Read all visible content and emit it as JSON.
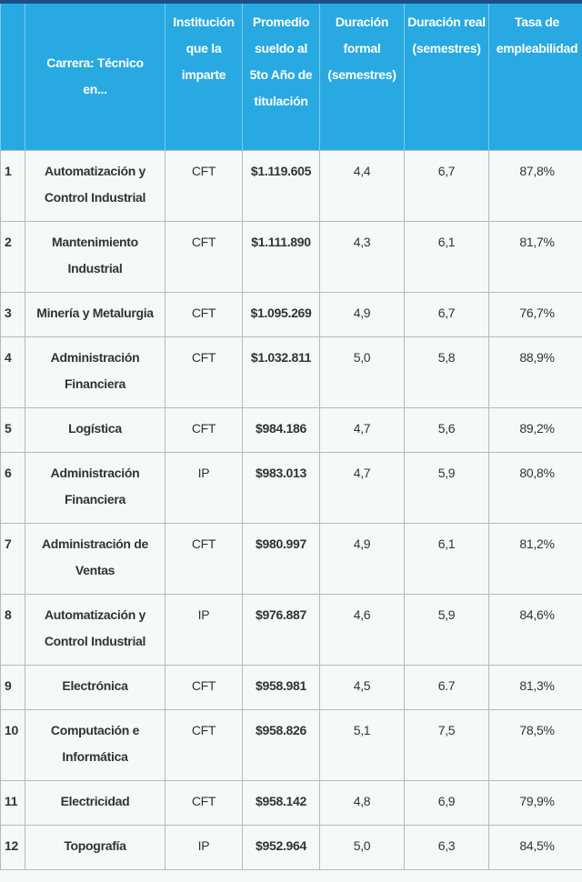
{
  "headers": [
    "",
    "Carrera: Técnico en...",
    "Institución que la imparte",
    "Promedio sueldo al 5to Año de titulación",
    "Duración formal (semestres)",
    "Duración real (semestres)",
    "Tasa de empleabilidad"
  ],
  "rows": [
    {
      "n": "1",
      "carrera": "Automatización y Control Industrial",
      "inst": "CFT",
      "sueldo": "$1.119.605",
      "formal": "4,4",
      "real": "6,7",
      "tasa": "87,8%"
    },
    {
      "n": "2",
      "carrera": "Mantenimiento Industrial",
      "inst": "CFT",
      "sueldo": "$1.111.890",
      "formal": "4,3",
      "real": "6,1",
      "tasa": "81,7%"
    },
    {
      "n": "3",
      "carrera": "Minería y Metalurgia",
      "inst": "CFT",
      "sueldo": "$1.095.269",
      "formal": "4,9",
      "real": "6,7",
      "tasa": "76,7%"
    },
    {
      "n": "4",
      "carrera": "Administración Financiera",
      "inst": "CFT",
      "sueldo": "$1.032.811",
      "formal": "5,0",
      "real": "5,8",
      "tasa": "88,9%"
    },
    {
      "n": "5",
      "carrera": "Logística",
      "inst": "CFT",
      "sueldo": "$984.186",
      "formal": "4,7",
      "real": "5,6",
      "tasa": "89,2%"
    },
    {
      "n": "6",
      "carrera": "Administración Financiera",
      "inst": "IP",
      "sueldo": "$983.013",
      "formal": "4,7",
      "real": "5,9",
      "tasa": "80,8%"
    },
    {
      "n": "7",
      "carrera": "Administración de Ventas",
      "inst": "CFT",
      "sueldo": "$980.997",
      "formal": "4,9",
      "real": "6,1",
      "tasa": "81,2%"
    },
    {
      "n": "8",
      "carrera": "Automatización y Control Industrial",
      "inst": "IP",
      "sueldo": "$976.887",
      "formal": "4,6",
      "real": "5,9",
      "tasa": "84,6%"
    },
    {
      "n": "9",
      "carrera": "Electrónica",
      "inst": "CFT",
      "sueldo": "$958.981",
      "formal": "4,5",
      "real": "6.7",
      "tasa": "81,3%"
    },
    {
      "n": "10",
      "carrera": "Computación e Informática",
      "inst": "CFT",
      "sueldo": "$958.826",
      "formal": "5,1",
      "real": "7,5",
      "tasa": "78,5%"
    },
    {
      "n": "11",
      "carrera": "Electricidad",
      "inst": "CFT",
      "sueldo": "$958.142",
      "formal": "4,8",
      "real": "6,9",
      "tasa": "79,9%"
    },
    {
      "n": "12",
      "carrera": "Topografía",
      "inst": "IP",
      "sueldo": "$952.964",
      "formal": "5,0",
      "real": "6,3",
      "tasa": "84,5%"
    }
  ]
}
